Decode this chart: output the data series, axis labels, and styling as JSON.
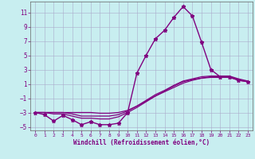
{
  "xlabel": "Windchill (Refroidissement éolien,°C)",
  "bg_color": "#c8eef0",
  "line_color": "#800080",
  "grid_color": "#aaaacc",
  "xlim": [
    -0.5,
    23.5
  ],
  "ylim": [
    -5.5,
    12.5
  ],
  "yticks": [
    -5,
    -3,
    -1,
    1,
    3,
    5,
    7,
    9,
    11
  ],
  "xticks": [
    0,
    1,
    2,
    3,
    4,
    5,
    6,
    7,
    8,
    9,
    10,
    11,
    12,
    13,
    14,
    15,
    16,
    17,
    18,
    19,
    20,
    21,
    22,
    23
  ],
  "series": [
    {
      "x": [
        0,
        1,
        2,
        3,
        4,
        5,
        6,
        7,
        8,
        9,
        10,
        11,
        12,
        13,
        14,
        15,
        16,
        17,
        18,
        19,
        20,
        21,
        22,
        23
      ],
      "y": [
        -3.0,
        -3.3,
        -4.2,
        -3.4,
        -4.0,
        -4.7,
        -4.3,
        -4.7,
        -4.7,
        -4.5,
        -3.0,
        2.5,
        5.0,
        7.3,
        8.5,
        10.3,
        11.8,
        10.5,
        6.8,
        3.0,
        2.0,
        2.0,
        1.5,
        1.3
      ],
      "marker": "*",
      "markersize": 3.5,
      "linewidth": 1.0,
      "zorder": 3
    },
    {
      "x": [
        0,
        1,
        2,
        3,
        4,
        5,
        6,
        7,
        8,
        9,
        10,
        11,
        12,
        13,
        14,
        15,
        16,
        17,
        18,
        19,
        20,
        21,
        22,
        23
      ],
      "y": [
        -3.0,
        -3.0,
        -3.0,
        -3.0,
        -3.0,
        -3.0,
        -3.0,
        -3.1,
        -3.1,
        -3.0,
        -2.7,
        -2.1,
        -1.4,
        -0.7,
        -0.1,
        0.5,
        1.1,
        1.5,
        1.8,
        2.0,
        2.0,
        2.0,
        1.6,
        1.3
      ],
      "marker": null,
      "markersize": 0,
      "linewidth": 0.9,
      "zorder": 2
    },
    {
      "x": [
        0,
        1,
        2,
        3,
        4,
        5,
        6,
        7,
        8,
        9,
        10,
        11,
        12,
        13,
        14,
        15,
        16,
        17,
        18,
        19,
        20,
        21,
        22,
        23
      ],
      "y": [
        -3.0,
        -3.0,
        -3.0,
        -3.0,
        -3.2,
        -3.5,
        -3.5,
        -3.5,
        -3.5,
        -3.3,
        -2.8,
        -2.1,
        -1.3,
        -0.5,
        0.1,
        0.8,
        1.4,
        1.7,
        2.0,
        2.1,
        2.1,
        2.1,
        1.7,
        1.4
      ],
      "marker": null,
      "markersize": 0,
      "linewidth": 0.9,
      "zorder": 2
    },
    {
      "x": [
        0,
        1,
        2,
        3,
        4,
        5,
        6,
        7,
        8,
        9,
        10,
        11,
        12,
        13,
        14,
        15,
        16,
        17,
        18,
        19,
        20,
        21,
        22,
        23
      ],
      "y": [
        -3.0,
        -3.0,
        -3.2,
        -3.2,
        -3.5,
        -3.8,
        -3.8,
        -3.9,
        -3.9,
        -3.6,
        -3.0,
        -2.3,
        -1.5,
        -0.7,
        0.0,
        0.7,
        1.3,
        1.6,
        1.8,
        1.9,
        1.9,
        1.9,
        1.5,
        1.3
      ],
      "marker": null,
      "markersize": 0,
      "linewidth": 0.9,
      "zorder": 2
    }
  ]
}
